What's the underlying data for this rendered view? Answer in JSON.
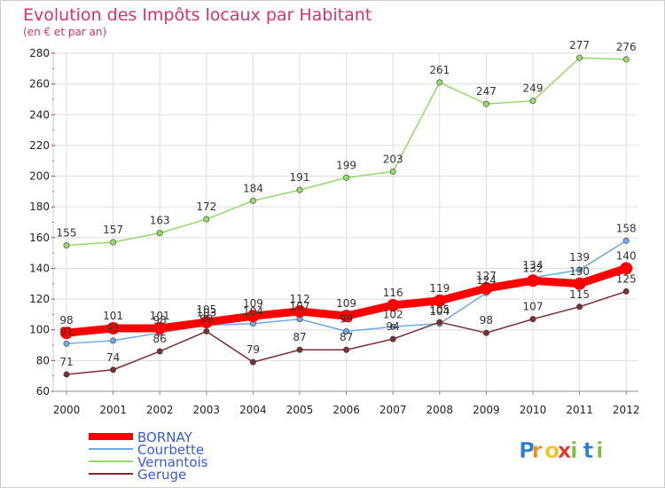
{
  "chart_data": {
    "type": "line",
    "title": "Evolution des Impôts locaux par Habitant",
    "subtitle": "(en € et par an)",
    "xlabel": "",
    "ylabel": "",
    "categories": [
      "2000",
      "2001",
      "2002",
      "2003",
      "2004",
      "2005",
      "2006",
      "2007",
      "2008",
      "2009",
      "2010",
      "2011",
      "2012"
    ],
    "ylim": [
      60,
      280
    ],
    "yticks": [
      60,
      80,
      100,
      120,
      140,
      160,
      180,
      200,
      220,
      240,
      260,
      280
    ],
    "grid": true,
    "legend_position": "bottom-left",
    "series": [
      {
        "name": "BORNAY",
        "color": "#ff0000",
        "values": [
          98,
          101,
          101,
          105,
          109,
          112,
          109,
          116,
          119,
          127,
          132,
          130,
          140
        ]
      },
      {
        "name": "Courbette",
        "color": "#6fa8dc",
        "values": [
          91,
          93,
          98,
          103,
          104,
          107,
          99,
          102,
          104,
          124,
          134,
          139,
          158
        ]
      },
      {
        "name": "Vernantois",
        "color": "#93d96c",
        "values": [
          155,
          157,
          163,
          172,
          184,
          191,
          199,
          203,
          261,
          247,
          249,
          277,
          276
        ]
      },
      {
        "name": "Geruge",
        "color": "#7b2f35",
        "values": [
          71,
          74,
          86,
          99,
          79,
          87,
          87,
          94,
          105,
          98,
          107,
          115,
          125
        ]
      }
    ]
  },
  "brand": {
    "letters": [
      "P",
      "r",
      "o",
      "x",
      "i",
      "t",
      "i"
    ],
    "colors": [
      "#2a7fd4",
      "#f28c1c",
      "#f2c21c",
      "#e8302c",
      "#7cbf3a",
      "#2a7fd4",
      "#7cbf3a"
    ]
  },
  "colors": {
    "title": "#d6336c",
    "axis_text": "#222222",
    "grid": "#dddddd",
    "frame": "#cccccc"
  }
}
